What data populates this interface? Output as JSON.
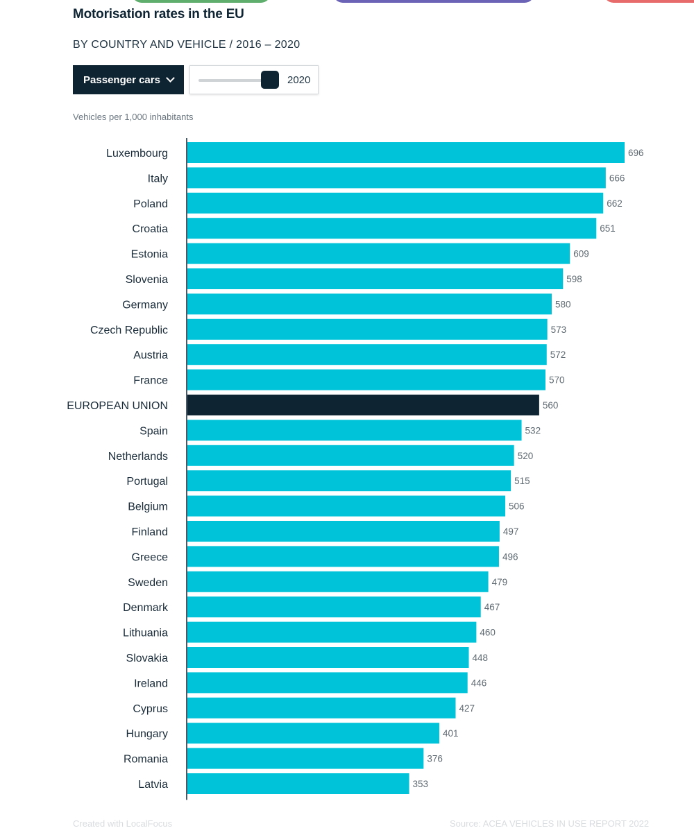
{
  "header": {
    "title": "Motorisation rates in the EU",
    "subtitle": "BY COUNTRY AND VEHICLE  / 2016 – 2020"
  },
  "controls": {
    "vehicle_label": "Passenger cars",
    "year": "2020"
  },
  "footer": {
    "credit": "Created with LocalFocus",
    "source": "Source:  ACEA VEHICLES IN USE REPORT 2022"
  },
  "colors": {
    "bar": "#00c3d9",
    "highlight": "#0e2433"
  },
  "chart_data": {
    "type": "bar",
    "orientation": "horizontal",
    "ylabel": "Vehicles per 1,000 inhabitants",
    "categories": [
      "Luxembourg",
      "Italy",
      "Poland",
      "Croatia",
      "Estonia",
      "Slovenia",
      "Germany",
      "Czech Republic",
      "Austria",
      "France",
      "EUROPEAN UNION",
      "Spain",
      "Netherlands",
      "Portugal",
      "Belgium",
      "Finland",
      "Greece",
      "Sweden",
      "Denmark",
      "Lithuania",
      "Slovakia",
      "Ireland",
      "Cyprus",
      "Hungary",
      "Romania",
      "Latvia"
    ],
    "values": [
      696,
      666,
      662,
      651,
      609,
      598,
      580,
      573,
      572,
      570,
      560,
      532,
      520,
      515,
      506,
      497,
      496,
      479,
      467,
      460,
      448,
      446,
      427,
      401,
      376,
      353
    ],
    "highlight": "EUROPEAN UNION",
    "xlim": [
      0,
      696
    ],
    "grid": false
  }
}
